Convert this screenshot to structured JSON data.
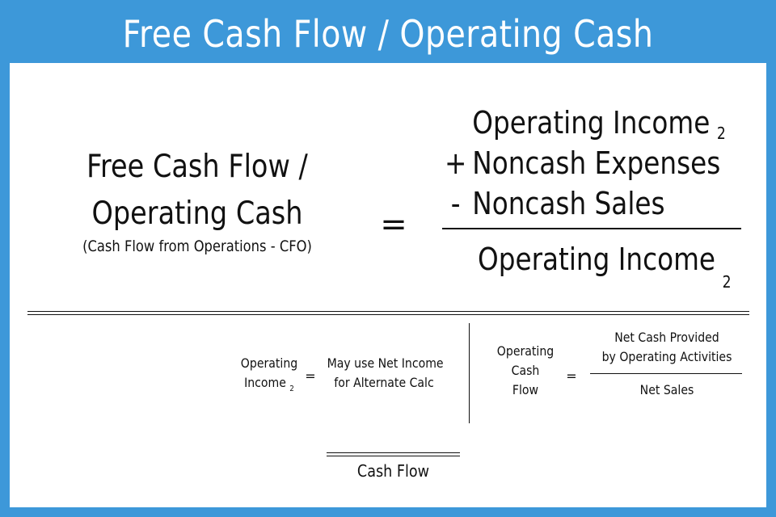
{
  "title": "Free Cash Flow / Operating Cash",
  "main_formula": {
    "lhs_line1": "Free Cash Flow /",
    "lhs_line2": "Operating Cash",
    "lhs_sub": "(Cash Flow from Operations - CFO)",
    "equals": "=",
    "numerator": [
      {
        "sign": "",
        "term": "Operating Income",
        "subscript": "2"
      },
      {
        "sign": "+",
        "term": "Noncash Expenses",
        "subscript": ""
      },
      {
        "sign": "-",
        "term": "Noncash Sales",
        "subscript": ""
      }
    ],
    "denominator": {
      "term": "Operating Income",
      "subscript": "2"
    }
  },
  "note_formula": {
    "lhs_line1": "Operating",
    "lhs_line2": "Income",
    "lhs_subscript": "2",
    "equals": "=",
    "rhs_line1": "May use Net Income",
    "rhs_line2": "for Alternate Calc"
  },
  "ocf_formula": {
    "lhs_line1": "Operating",
    "lhs_line2": "Cash",
    "lhs_line3": "Flow",
    "equals": "=",
    "numerator_line1": "Net Cash Provided",
    "numerator_line2": "by Operating Activities",
    "denominator": "Net Sales"
  },
  "footer_label": "Cash Flow"
}
